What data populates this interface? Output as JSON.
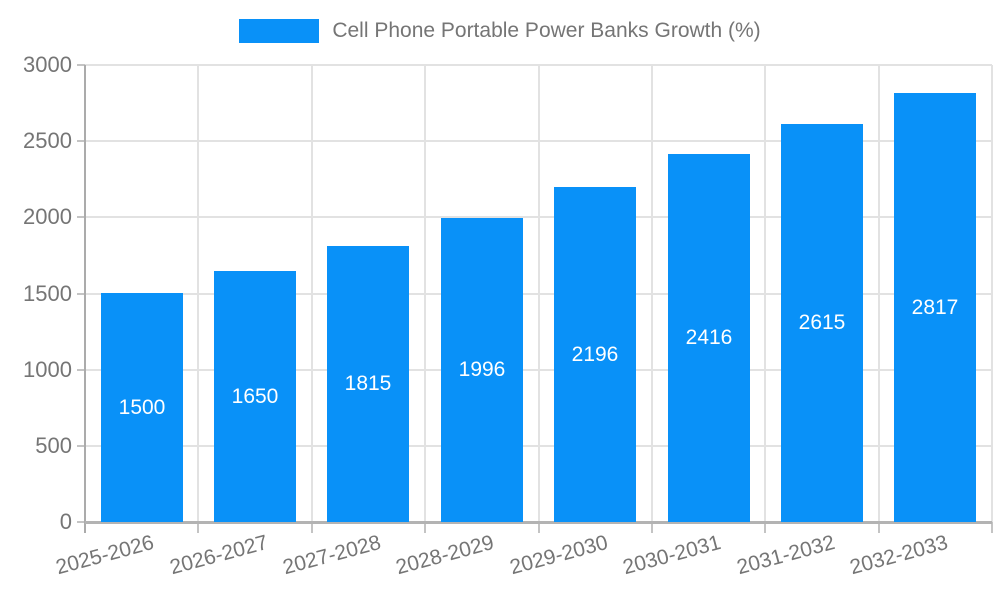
{
  "legend": {
    "label": "Cell Phone Portable Power Banks Growth (%)",
    "swatch_color": "#0991f8"
  },
  "chart_data": {
    "type": "bar",
    "title": "",
    "xlabel": "",
    "ylabel": "",
    "categories": [
      "2025-2026",
      "2026-2027",
      "2027-2028",
      "2028-2029",
      "2029-2030",
      "2030-2031",
      "2031-2032",
      "2032-2033"
    ],
    "series": [
      {
        "name": "Cell Phone Portable Power Banks Growth (%)",
        "values": [
          1500,
          1650,
          1815,
          1996,
          2196,
          2416,
          2615,
          2817
        ]
      }
    ],
    "data_labels": [
      1500,
      1650,
      1815,
      1996,
      2196,
      2416,
      2615,
      2817
    ],
    "ylim": [
      0,
      3000
    ],
    "yticks": [
      0,
      500,
      1000,
      1500,
      2000,
      2500,
      3000
    ],
    "grid": true,
    "legend_position": "top-center",
    "x_label_rotation_deg": -15
  },
  "colors": {
    "bar": "#0991f8",
    "bar_label": "#ffffff",
    "grid": "#e2e2e2",
    "axis": "#b3b3b3",
    "tick": "#c4c4c4",
    "tick_label": "#757575",
    "legend_text": "#757575",
    "background": "#ffffff"
  }
}
